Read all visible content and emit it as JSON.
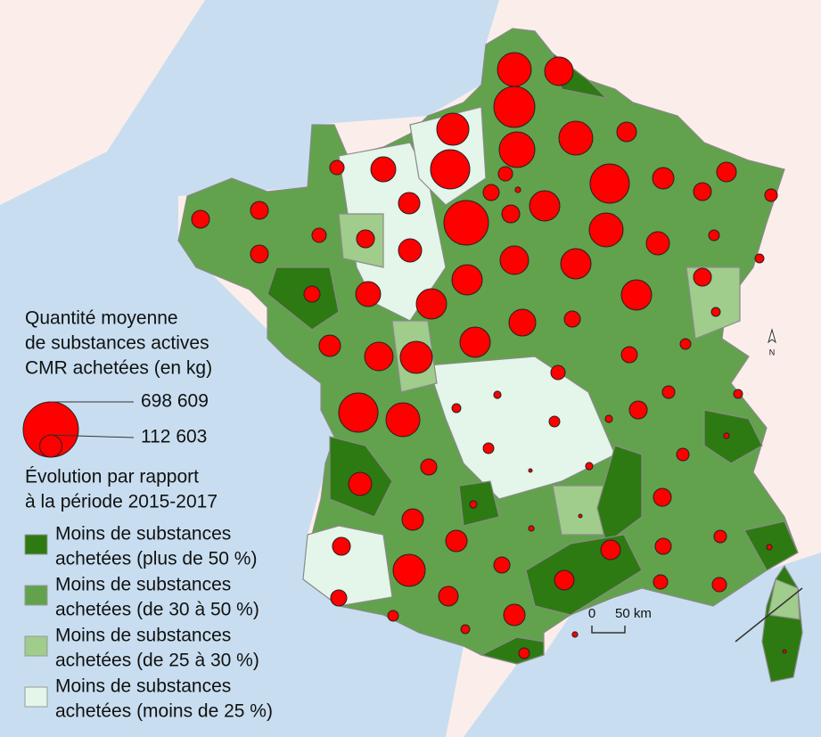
{
  "legend": {
    "size_title": [
      "Quantité moyenne",
      "de substances actives",
      "CMR achetées (en kg)"
    ],
    "size_values": [
      {
        "value": 698609,
        "label": "698 609"
      },
      {
        "value": 112603,
        "label": "112 603"
      }
    ],
    "color_title": [
      "Évolution par rapport",
      "à la période 2015-2017"
    ],
    "classes": [
      {
        "label": [
          "Moins de substances",
          "achetées (plus de 50 %)"
        ],
        "color": "#2e7a12"
      },
      {
        "label": [
          "Moins de substances",
          "achetées (de 30 à 50 %)"
        ],
        "color": "#62a24c"
      },
      {
        "label": [
          "Moins de substances",
          "achetées (de 25 à 30 %)"
        ],
        "color": "#a0cc8c"
      },
      {
        "label": [
          "Moins de substances",
          "achetées (moins de 25 %)"
        ],
        "color": "#e4f5ea"
      }
    ]
  },
  "circle_color": "#ff0000",
  "scale": {
    "labels": [
      "0",
      "50 km"
    ]
  },
  "compass": "N",
  "circles": [
    262000,
    186000,
    385000,
    291000,
    262000,
    236000,
    352000,
    142000,
    47000,
    47000,
    59000,
    105000,
    454000,
    73000,
    210000,
    352000,
    88000,
    105000,
    73000,
    88000,
    36000,
    262000,
    123000,
    26000,
    18000,
    210000,
    186000,
    210000,
    123000,
    73000,
    47000,
    73000,
    73000,
    73000,
    59000,
    142000,
    210000,
    164000,
    59000,
    210000,
    73000,
    18000,
    26000,
    59000,
    210000,
    236000,
    186000,
    105000,
    47000,
    36000,
    18000,
    73000,
    12000,
    26000,
    12000,
    18000,
    352000,
    262000,
    26000,
    59000,
    3000,
    12000,
    36000,
    7000,
    123000,
    12000,
    105000,
    105000,
    7000,
    73000,
    36000,
    7000,
    88000,
    59000,
    59000,
    236000,
    73000,
    88000,
    47000,
    47000,
    3000,
    59000,
    26000,
    88000,
    105000,
    18000,
    26000,
    7000,
    7000,
    3000
  ]
}
